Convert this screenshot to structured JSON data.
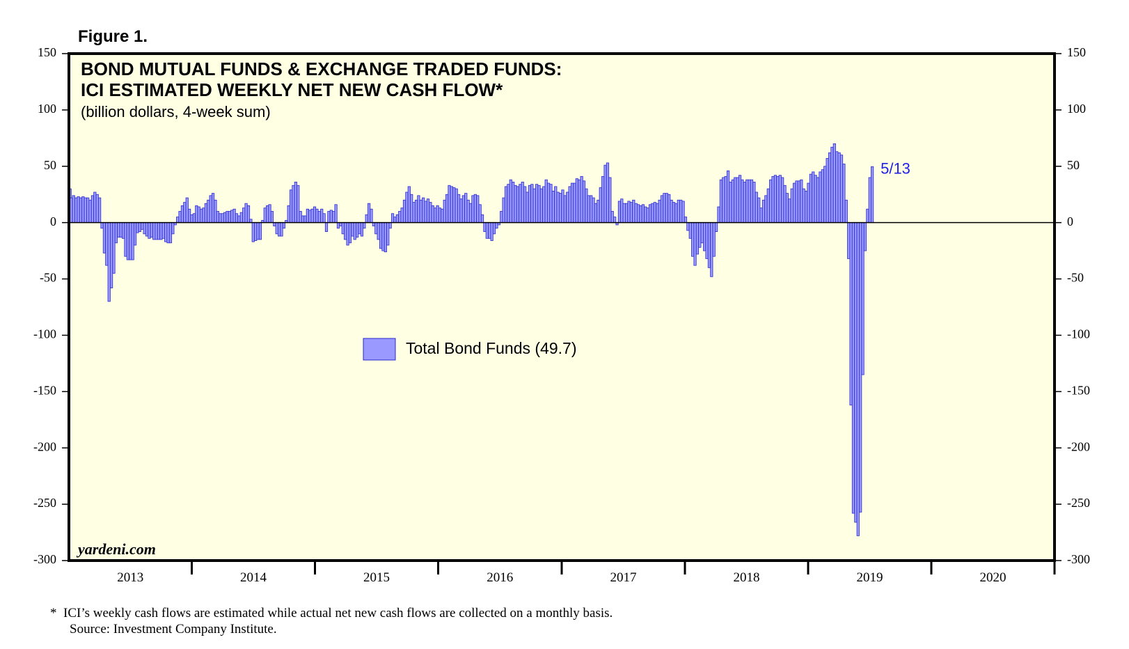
{
  "figure_label": "Figure 1.",
  "watermark": "yardeni.com",
  "footnote": {
    "line1": "*  ICI’s weekly cash flows are estimated while actual net new cash flows are collected on a monthly basis.",
    "line2": "Source: Investment Company Institute."
  },
  "colors": {
    "plot_background": "#FFFFE3",
    "bar_fill": "#9999FF",
    "bar_stroke": "#2A2ACC",
    "annotation": "#1F1FE6"
  },
  "chart_data": {
    "type": "bar",
    "title_line1": "BOND MUTUAL FUNDS & EXCHANGE TRADED FUNDS:",
    "title_line2": "ICI ESTIMATED WEEKLY NET NEW CASH FLOW*",
    "subtitle": "(billion dollars, 4-week sum)",
    "legend": "Total Bond Funds (49.7)",
    "last_point_label": "5/13",
    "ylim": [
      -300,
      150
    ],
    "yticks": [
      150,
      100,
      50,
      0,
      -50,
      -100,
      -150,
      -200,
      -250,
      -300
    ],
    "xticks": [
      "2013",
      "2014",
      "2015",
      "2016",
      "2017",
      "2018",
      "2019",
      "2020"
    ],
    "x_start": "2013-01-02",
    "x_end": "2020-12-31",
    "grid": false,
    "series": [
      {
        "name": "Total Bond Funds",
        "frequency": "weekly",
        "first_week": "2013-01-02",
        "last_week": "2020-05-13",
        "values": [
          30,
          22,
          24,
          22,
          23,
          22,
          23,
          22,
          22,
          20,
          24,
          27,
          25,
          22,
          -5,
          -27,
          -38,
          -70,
          -58,
          -45,
          -18,
          -13,
          -13,
          -14,
          -30,
          -33,
          -33,
          -33,
          -20,
          -9,
          -8,
          -6,
          -10,
          -12,
          -14,
          -13,
          -15,
          -15,
          -15,
          -15,
          -14,
          -17,
          -18,
          -18,
          -10,
          -2,
          5,
          10,
          15,
          18,
          22,
          12,
          7,
          8,
          15,
          14,
          12,
          13,
          17,
          20,
          24,
          26,
          20,
          10,
          8,
          8,
          9,
          10,
          10,
          11,
          12,
          8,
          6,
          9,
          13,
          17,
          15,
          3,
          -17,
          -16,
          -15,
          -15,
          2,
          13,
          15,
          16,
          10,
          -3,
          -10,
          -12,
          -12,
          -5,
          2,
          15,
          29,
          33,
          36,
          33,
          10,
          6,
          6,
          12,
          11,
          12,
          14,
          12,
          10,
          12,
          8,
          -8,
          10,
          11,
          10,
          16,
          -5,
          -3,
          -10,
          -15,
          -20,
          -18,
          -12,
          -15,
          -13,
          -10,
          -12,
          -5,
          7,
          17,
          12,
          -3,
          -10,
          -15,
          -23,
          -25,
          -26,
          -20,
          -5,
          8,
          5,
          7,
          10,
          13,
          20,
          27,
          32,
          25,
          18,
          20,
          24,
          20,
          22,
          19,
          21,
          18,
          15,
          13,
          15,
          13,
          12,
          20,
          25,
          33,
          32,
          31,
          30,
          25,
          21,
          24,
          26,
          20,
          17,
          24,
          25,
          24,
          16,
          7,
          -8,
          -14,
          -14,
          -16,
          -10,
          -5,
          -2,
          10,
          22,
          32,
          34,
          38,
          36,
          33,
          32,
          34,
          36,
          32,
          27,
          33,
          34,
          30,
          34,
          33,
          30,
          32,
          38,
          35,
          34,
          28,
          32,
          27,
          26,
          29,
          24,
          27,
          32,
          35,
          35,
          39,
          38,
          41,
          37,
          30,
          24,
          24,
          22,
          17,
          20,
          31,
          41,
          51,
          53,
          40,
          10,
          5,
          -2,
          19,
          21,
          17,
          17,
          19,
          18,
          20,
          17,
          16,
          15,
          16,
          14,
          13,
          16,
          17,
          18,
          17,
          20,
          24,
          26,
          26,
          25,
          20,
          18,
          17,
          20,
          20,
          19,
          5,
          -7,
          -14,
          -30,
          -38,
          -28,
          -22,
          -18,
          -25,
          -32,
          -40,
          -48,
          -30,
          -8,
          14,
          38,
          40,
          41,
          46,
          36,
          38,
          40,
          40,
          42,
          38,
          36,
          38,
          38,
          38,
          36,
          27,
          22,
          13,
          20,
          24,
          30,
          38,
          41,
          42,
          41,
          42,
          40,
          33,
          26,
          21,
          30,
          35,
          37,
          37,
          38,
          30,
          28,
          35,
          43,
          45,
          42,
          40,
          45,
          47,
          50,
          57,
          62,
          67,
          70,
          63,
          62,
          60,
          52,
          20,
          -32,
          -162,
          -258,
          -266,
          -278,
          -257,
          -135,
          -25,
          12,
          40,
          49.7
        ]
      }
    ]
  }
}
